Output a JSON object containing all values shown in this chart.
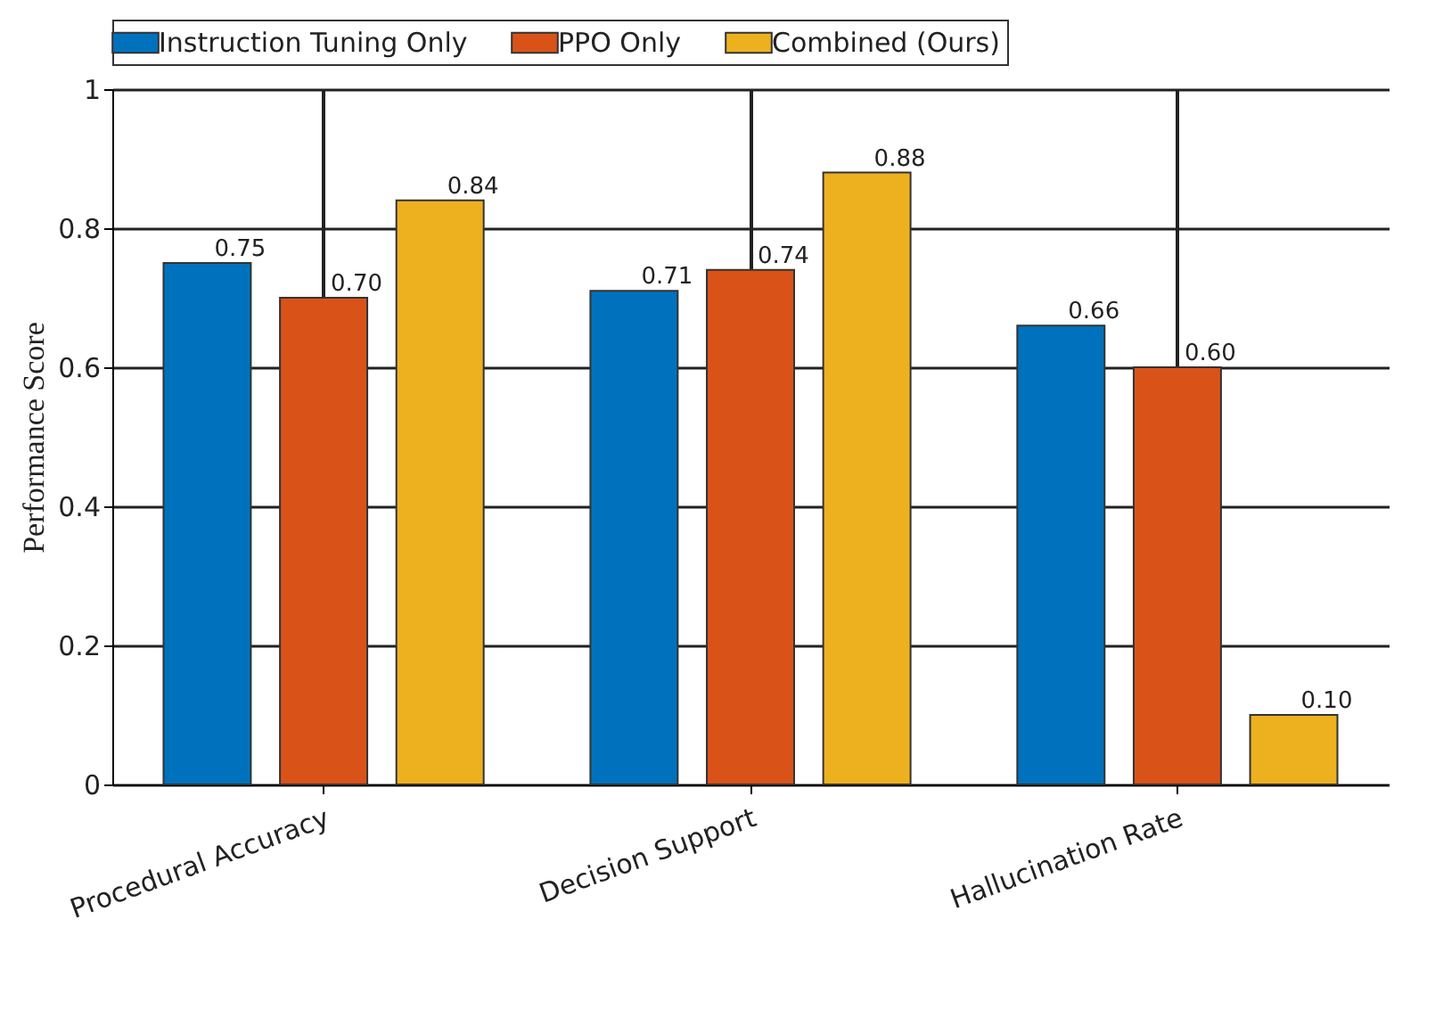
{
  "chart_data": {
    "type": "bar",
    "ylabel": "Performance Score",
    "categories": [
      "Procedural Accuracy",
      "Decision Support",
      "Hallucination Rate"
    ],
    "series": [
      {
        "name": "Instruction Tuning Only",
        "color": "#0072bd",
        "values": [
          0.75,
          0.71,
          0.66
        ],
        "value_labels": [
          "0.75",
          "0.71",
          "0.66"
        ]
      },
      {
        "name": "PPO Only",
        "color": "#d95319",
        "values": [
          0.7,
          0.74,
          0.6
        ],
        "value_labels": [
          "0.70",
          "0.74",
          "0.60"
        ]
      },
      {
        "name": "Combined (Ours)",
        "color": "#edb120",
        "values": [
          0.84,
          0.88,
          0.1
        ],
        "value_labels": [
          "0.84",
          "0.88",
          "0.10"
        ]
      }
    ],
    "ylim": [
      0,
      1
    ],
    "yticks": [
      0,
      0.2,
      0.4,
      0.6,
      0.8,
      1
    ],
    "grid": true,
    "legend": "top"
  }
}
